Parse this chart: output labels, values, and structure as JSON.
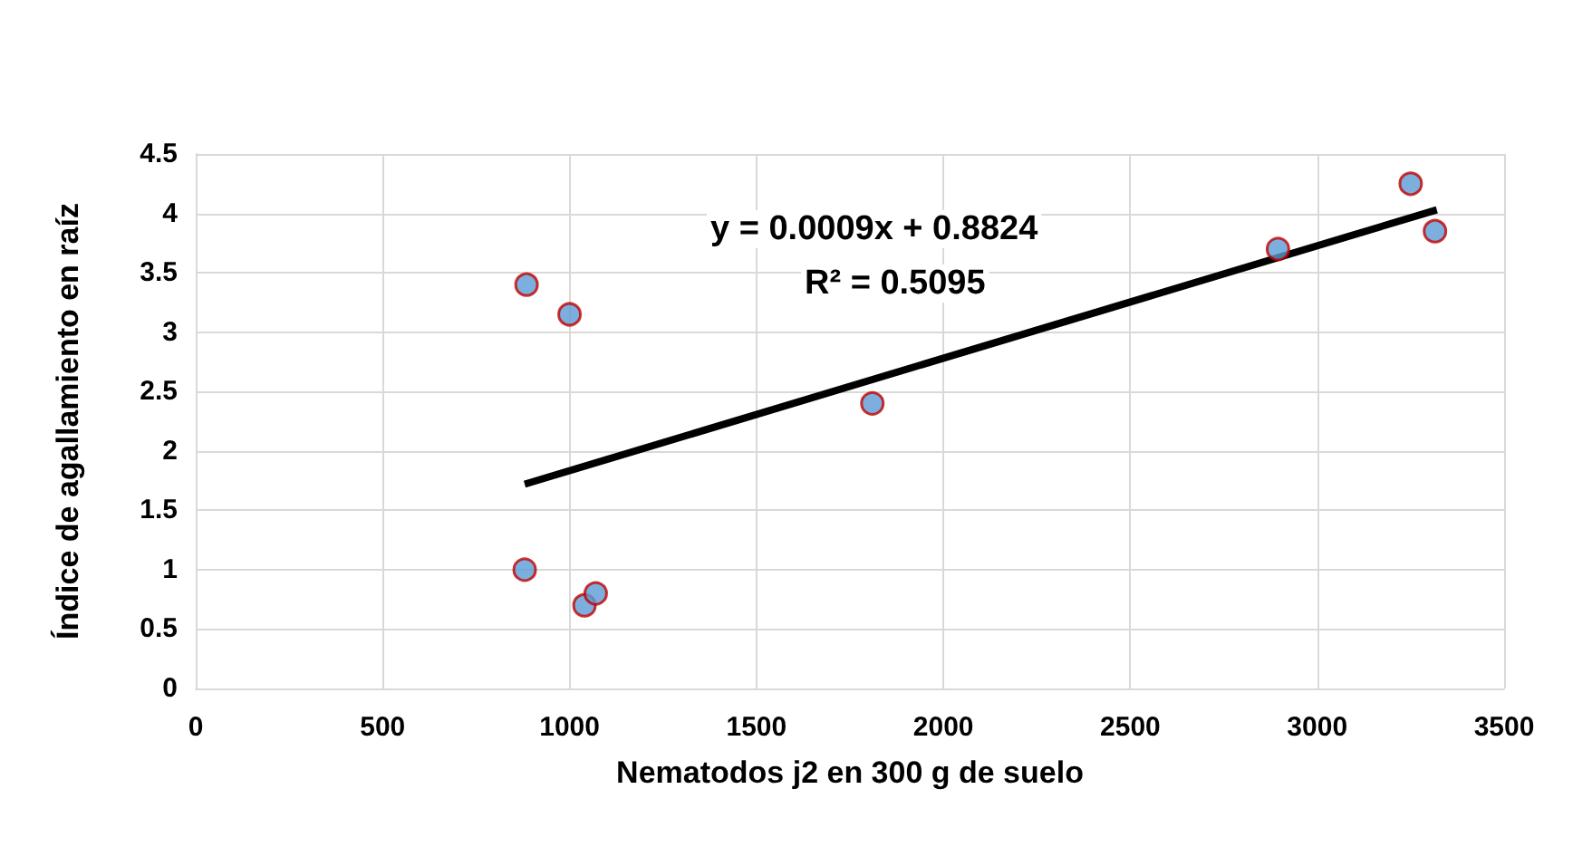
{
  "chart_data": {
    "type": "scatter",
    "xlabel": "Nematodos j2 en 300 g de suelo",
    "ylabel": "Índice de agallamiento en raíz",
    "xlim": [
      0,
      3500
    ],
    "xticks": [
      0,
      500,
      1000,
      1500,
      2000,
      2500,
      3000,
      3500
    ],
    "ylim": [
      0,
      4.5
    ],
    "yticks": [
      0,
      0.5,
      1,
      1.5,
      2,
      2.5,
      3,
      3.5,
      4,
      4.5
    ],
    "grid": true,
    "annotations": [
      "y = 0.0009x + 0.8824",
      "R² = 0.5095"
    ],
    "series": [
      {
        "marker": "circle",
        "color": "#5b9bd5",
        "x": [
          880,
          885,
          1000,
          1040,
          1070,
          1810,
          2895,
          3250,
          3315
        ],
        "values": [
          1.0,
          3.4,
          3.15,
          0.7,
          0.8,
          2.4,
          3.7,
          4.25,
          3.85
        ]
      },
      {
        "type": "line",
        "color": "#000000",
        "x": [
          880,
          3320
        ],
        "values": [
          1.72,
          4.03
        ]
      }
    ]
  }
}
